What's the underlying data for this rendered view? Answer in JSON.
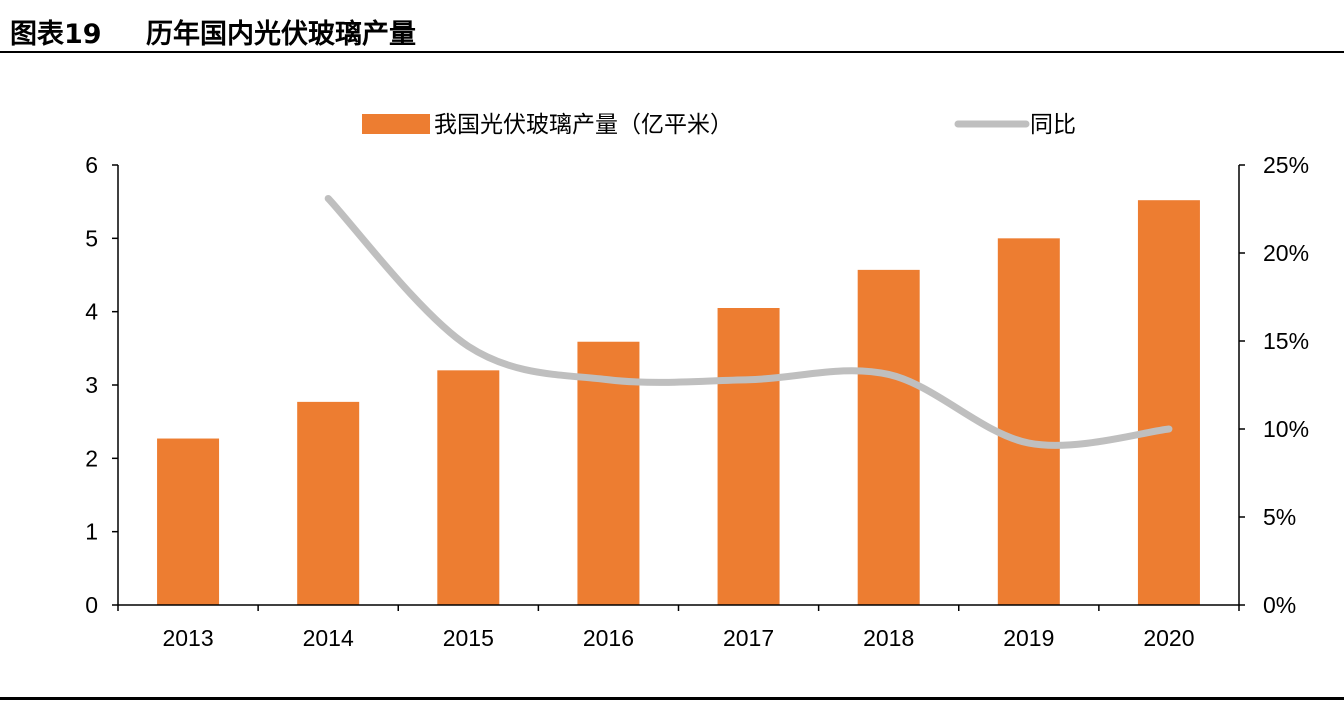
{
  "header": {
    "figure_label": "图表19",
    "title": "历年国内光伏玻璃产量"
  },
  "chart_data": {
    "type": "bar",
    "categories": [
      "2013",
      "2014",
      "2015",
      "2016",
      "2017",
      "2018",
      "2019",
      "2020"
    ],
    "series": [
      {
        "name": "我国光伏玻璃产量（亿平米）",
        "type": "bar",
        "axis": "left",
        "color": "#ED7D31",
        "values": [
          2.27,
          2.77,
          3.2,
          3.59,
          4.05,
          4.57,
          5.0,
          5.52
        ]
      },
      {
        "name": "同比",
        "type": "line",
        "axis": "right",
        "color": "#BFBFBF",
        "values": [
          null,
          0.231,
          0.147,
          0.128,
          0.128,
          0.131,
          0.092,
          0.1
        ]
      }
    ],
    "left_axis": {
      "ylim": [
        0,
        6
      ],
      "ticks": [
        "0",
        "1",
        "2",
        "3",
        "4",
        "5",
        "6"
      ]
    },
    "right_axis": {
      "ylim": [
        0,
        0.25
      ],
      "ticks": [
        "0%",
        "5%",
        "10%",
        "15%",
        "20%",
        "25%"
      ]
    },
    "xlabel": "",
    "ylabel": "",
    "grid": false,
    "legend_placement": "top"
  }
}
